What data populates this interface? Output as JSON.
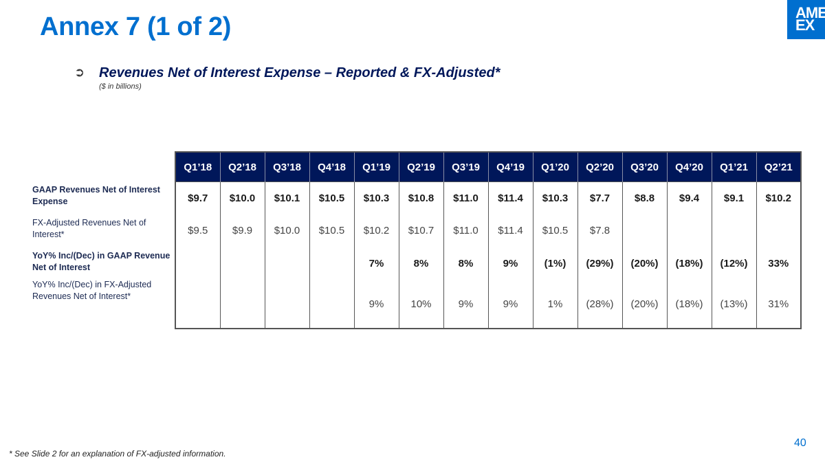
{
  "title": "Annex 7 (1 of 2)",
  "logo": {
    "line1": "AME",
    "line2": "EX"
  },
  "subtitle": "Revenues Net of Interest Expense – Reported & FX-Adjusted*",
  "units": "($ in billions)",
  "columns": [
    "Q1’18",
    "Q2’18",
    "Q3’18",
    "Q4’18",
    "Q1’19",
    "Q2’19",
    "Q3’19",
    "Q4’19",
    "Q1’20",
    "Q2’20",
    "Q3’20",
    "Q4’20",
    "Q1’21",
    "Q2’21"
  ],
  "rows": [
    {
      "label": "GAAP Revenues Net of Interest Expense",
      "values": [
        "$9.7",
        "$10.0",
        "$10.1",
        "$10.5",
        "$10.3",
        "$10.8",
        "$11.0",
        "$11.4",
        "$10.3",
        "$7.7",
        "$8.8",
        "$9.4",
        "$9.1",
        "$10.2"
      ]
    },
    {
      "label": "FX-Adjusted Revenues Net of Interest*",
      "values": [
        "$9.5",
        "$9.9",
        "$10.0",
        "$10.5",
        "$10.2",
        "$10.7",
        "$11.0",
        "$11.4",
        "$10.5",
        "$7.8",
        "",
        "",
        "",
        ""
      ]
    },
    {
      "label": "YoY% Inc/(Dec) in GAAP Revenue Net of Interest",
      "values": [
        "",
        "",
        "",
        "",
        "7%",
        "8%",
        "8%",
        "9%",
        "(1%)",
        "(29%)",
        "(20%)",
        "(18%)",
        "(12%)",
        "33%"
      ]
    },
    {
      "label": "YoY% Inc/(Dec) in FX-Adjusted Revenues Net of Interest*",
      "values": [
        "",
        "",
        "",
        "",
        "9%",
        "10%",
        "9%",
        "9%",
        "1%",
        "(28%)",
        "(20%)",
        "(18%)",
        "(13%)",
        "31%"
      ]
    }
  ],
  "page_number": "40",
  "footnote": "* See Slide 2 for an explanation of FX-adjusted information."
}
